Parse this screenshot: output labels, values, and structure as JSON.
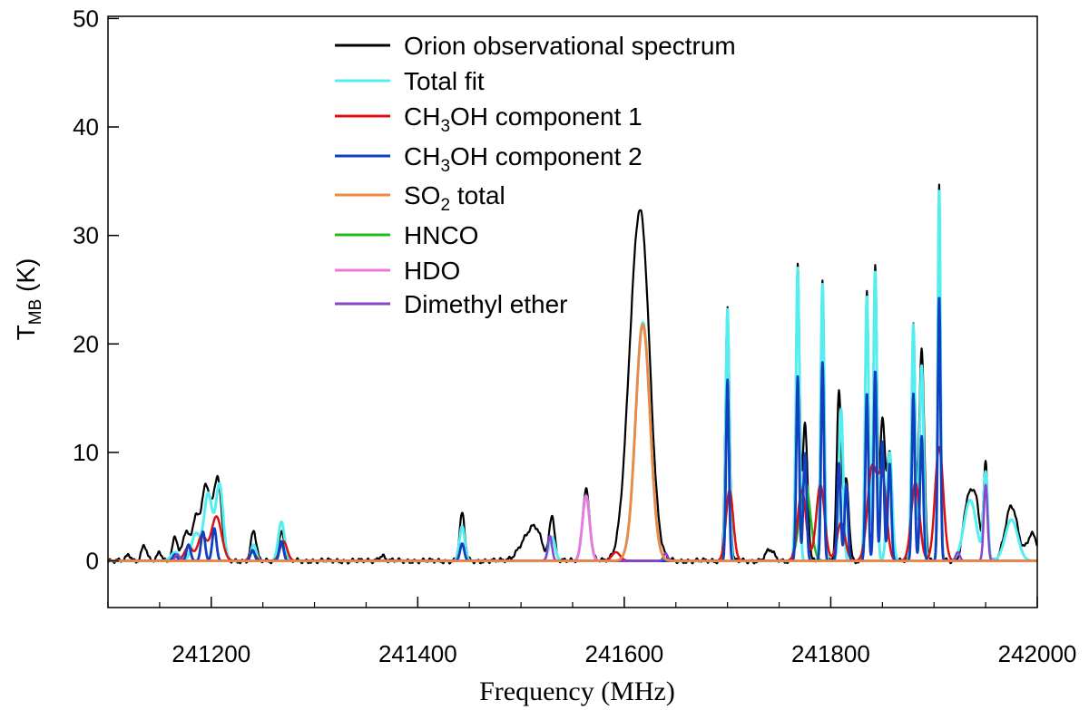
{
  "chart_data": {
    "type": "line",
    "title": "",
    "xlabel": "Frequency (MHz)",
    "ylabel_main": "T",
    "ylabel_sub": "MB",
    "ylabel_unit": " (K)",
    "xlim": [
      241100,
      242000
    ],
    "ylim": [
      -4.3,
      50.2
    ],
    "xticks": [
      241200,
      241400,
      241600,
      241800,
      242000
    ],
    "xtick_labels": [
      "241200",
      "241400",
      "241600",
      "241800",
      "242000"
    ],
    "yticks": [
      0,
      10,
      20,
      30,
      40,
      50
    ],
    "ytick_labels": [
      "0",
      "10",
      "20",
      "30",
      "40",
      "50"
    ],
    "series": [
      {
        "key": "obs",
        "color": "#000000",
        "label_parts": [
          {
            "t": "Orion observational spectrum"
          }
        ],
        "peaks": [
          [
            241120,
            0.6,
            2
          ],
          [
            241135,
            1.5,
            2.5
          ],
          [
            241150,
            0.8,
            2
          ],
          [
            241165,
            2.3,
            2.5
          ],
          [
            241175,
            2.5,
            3
          ],
          [
            241185,
            3.8,
            4
          ],
          [
            241195,
            6.8,
            4
          ],
          [
            241206,
            7.6,
            4
          ],
          [
            241241,
            2.8,
            2.5
          ],
          [
            241268,
            2.6,
            3
          ],
          [
            241365,
            0.5,
            3
          ],
          [
            241443,
            4.3,
            2.5
          ],
          [
            241505,
            1.8,
            8
          ],
          [
            241515,
            2.2,
            6
          ],
          [
            241530,
            4.2,
            2.5
          ],
          [
            241563,
            6.6,
            3.5
          ],
          [
            241608,
            13.5,
            8
          ],
          [
            241618,
            24.8,
            8
          ],
          [
            241700,
            23.2,
            2
          ],
          [
            241741,
            1.0,
            4
          ],
          [
            241768,
            27,
            1.8
          ],
          [
            241775,
            12.5,
            2.5
          ],
          [
            241792,
            25.8,
            1.8
          ],
          [
            241808,
            15.5,
            2.2
          ],
          [
            241815,
            7.5,
            2.5
          ],
          [
            241835,
            24.8,
            1.8
          ],
          [
            241843,
            26.8,
            1.8
          ],
          [
            241850,
            13,
            2.5
          ],
          [
            241857,
            10,
            2.5
          ],
          [
            241880,
            21.8,
            1.8
          ],
          [
            241888,
            19.5,
            2.5
          ],
          [
            241905,
            34.5,
            1.4
          ],
          [
            241932,
            5,
            4
          ],
          [
            241940,
            5.6,
            4
          ],
          [
            241950,
            8.8,
            2
          ],
          [
            241975,
            5.0,
            6
          ],
          [
            241995,
            2.5,
            5
          ]
        ],
        "noise": 0.25
      },
      {
        "key": "fit",
        "color": "#55eef0",
        "label_parts": [
          {
            "t": "Total fit"
          }
        ],
        "peaks": [
          [
            241165,
            0.8,
            4
          ],
          [
            241185,
            2.5,
            4
          ],
          [
            241197,
            6.2,
            4
          ],
          [
            241208,
            7,
            3.5
          ],
          [
            241241,
            1.5,
            2.5
          ],
          [
            241268,
            3.6,
            3
          ],
          [
            241443,
            3.2,
            2.5
          ],
          [
            241530,
            2.2,
            3
          ],
          [
            241563,
            6,
            3.5
          ],
          [
            241618,
            22,
            7
          ],
          [
            241700,
            23.2,
            1.7
          ],
          [
            241768,
            27,
            1.7
          ],
          [
            241792,
            25.5,
            1.7
          ],
          [
            241810,
            14,
            2
          ],
          [
            241835,
            24.5,
            1.7
          ],
          [
            241843,
            26.8,
            1.7
          ],
          [
            241857,
            10,
            2.5
          ],
          [
            241880,
            21.8,
            1.7
          ],
          [
            241888,
            18,
            2
          ],
          [
            241905,
            34.5,
            1.3
          ],
          [
            241935,
            5.6,
            6
          ],
          [
            241950,
            8,
            2
          ],
          [
            241975,
            3.8,
            6
          ]
        ],
        "noise": 0
      },
      {
        "key": "ch3oh1",
        "color": "#dd1111",
        "label_parts": [
          {
            "t": "CH"
          },
          {
            "t": "3",
            "sub": true
          },
          {
            "t": "OH component 1"
          }
        ],
        "peaks": [
          [
            241178,
            1.3,
            4
          ],
          [
            241191,
            2.3,
            4
          ],
          [
            241205,
            4.1,
            5
          ],
          [
            241240,
            0.8,
            3
          ],
          [
            241270,
            1.8,
            3.5
          ],
          [
            241592,
            0.8,
            4
          ],
          [
            241702,
            6.5,
            3.5
          ],
          [
            241772,
            6.5,
            4
          ],
          [
            241790,
            7.0,
            4
          ],
          [
            241810,
            3.5,
            4
          ],
          [
            241840,
            8.5,
            4.5
          ],
          [
            241850,
            7.5,
            4
          ],
          [
            241882,
            7.2,
            4
          ],
          [
            241905,
            10.5,
            4
          ]
        ],
        "noise": 0
      },
      {
        "key": "ch3oh2",
        "color": "#1040c0",
        "label_parts": [
          {
            "t": "CH"
          },
          {
            "t": "3",
            "sub": true
          },
          {
            "t": "OH component 2"
          }
        ],
        "peaks": [
          [
            241165,
            0.6,
            2
          ],
          [
            241178,
            1.5,
            2
          ],
          [
            241192,
            2.7,
            2
          ],
          [
            241203,
            3,
            2
          ],
          [
            241240,
            1.0,
            2
          ],
          [
            241268,
            1.8,
            2
          ],
          [
            241443,
            1.6,
            2
          ],
          [
            241700,
            16.7,
            1.4
          ],
          [
            241768,
            17,
            1.4
          ],
          [
            241775,
            10,
            1.6
          ],
          [
            241792,
            18.3,
            1.4
          ],
          [
            241808,
            9,
            1.6
          ],
          [
            241815,
            7,
            1.6
          ],
          [
            241835,
            15.5,
            1.4
          ],
          [
            241843,
            17.6,
            1.4
          ],
          [
            241850,
            11,
            1.6
          ],
          [
            241857,
            9,
            1.6
          ],
          [
            241880,
            15.4,
            1.4
          ],
          [
            241888,
            11.5,
            1.6
          ],
          [
            241905,
            24.5,
            1.3
          ]
        ],
        "noise": 0
      },
      {
        "key": "so2",
        "color": "#ee8844",
        "label_parts": [
          {
            "t": "SO"
          },
          {
            "t": "2",
            "sub": true
          },
          {
            "t": " total"
          }
        ],
        "peaks": [
          [
            241618,
            21.8,
            7
          ]
        ],
        "noise": 0
      },
      {
        "key": "hnco",
        "color": "#22bb22",
        "label_parts": [
          {
            "t": "HNCO"
          }
        ],
        "peaks": [
          [
            241775,
            7.5,
            5
          ]
        ],
        "noise": 0
      },
      {
        "key": "hdo",
        "color": "#ee77dd",
        "label_parts": [
          {
            "t": "HDO"
          }
        ],
        "peaks": [
          [
            241563,
            6,
            3.5
          ]
        ],
        "noise": 0
      },
      {
        "key": "dme",
        "color": "#8844cc",
        "label_parts": [
          {
            "t": "Dimethyl ether"
          }
        ],
        "peaks": [
          [
            241167,
            0.6,
            2
          ],
          [
            241528,
            2.3,
            2
          ],
          [
            241640,
            0.7,
            2
          ],
          [
            241923,
            0.8,
            2
          ],
          [
            241950,
            7,
            1.8
          ]
        ],
        "noise": 0
      }
    ]
  }
}
